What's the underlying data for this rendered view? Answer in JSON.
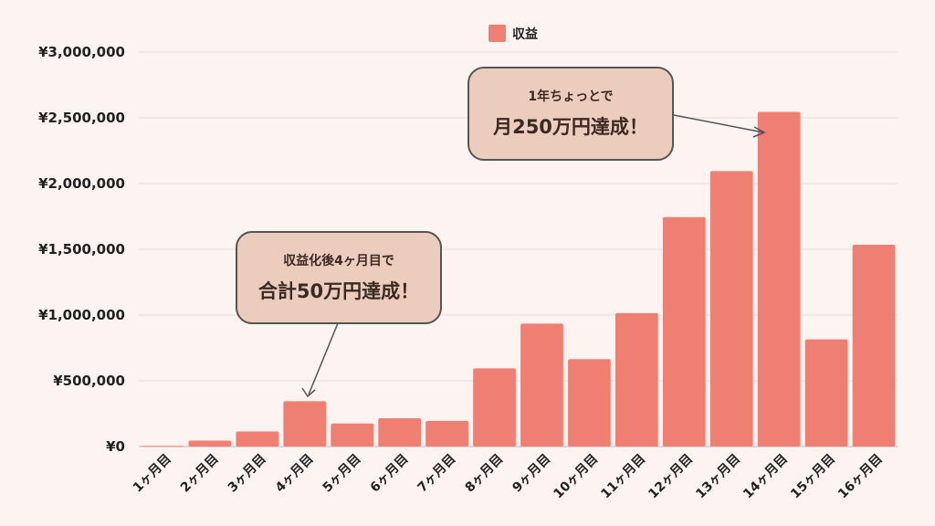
{
  "colors": {
    "bar": "#f07f73",
    "background": "#fdf3f1",
    "grid": "#e6dcd8"
  },
  "legend": {
    "label": "収益"
  },
  "callouts": [
    {
      "line1": "収益化後4ヶ月目で",
      "line2": "合計50万円達成！"
    },
    {
      "line1": "1年ちょっとで",
      "line2": "月250万円達成！"
    }
  ],
  "chart_data": {
    "type": "bar",
    "categories": [
      "1ヶ月目",
      "2ヶ月目",
      "3ヶ月目",
      "4ヶ月目",
      "5ヶ月目",
      "6ヶ月目",
      "7ヶ月目",
      "8ヶ月目",
      "9ヶ月目",
      "10ヶ月目",
      "11ヶ月目",
      "12ヶ月目",
      "13ヶ月目",
      "14ヶ月目",
      "15ヶ月目",
      "16ヶ月目"
    ],
    "series": [
      {
        "name": "収益",
        "values": [
          5000,
          45000,
          115000,
          345000,
          175000,
          215000,
          195000,
          595000,
          935000,
          665000,
          1015000,
          1745000,
          2095000,
          2545000,
          815000,
          1535000
        ]
      }
    ],
    "ylim": [
      0,
      3000000
    ],
    "yticks": [
      "¥0",
      "¥500,000",
      "¥1,000,000",
      "¥1,500,000",
      "¥2,000,000",
      "¥2,500,000",
      "¥3,000,000"
    ],
    "legend_position": "top",
    "grid": true
  }
}
